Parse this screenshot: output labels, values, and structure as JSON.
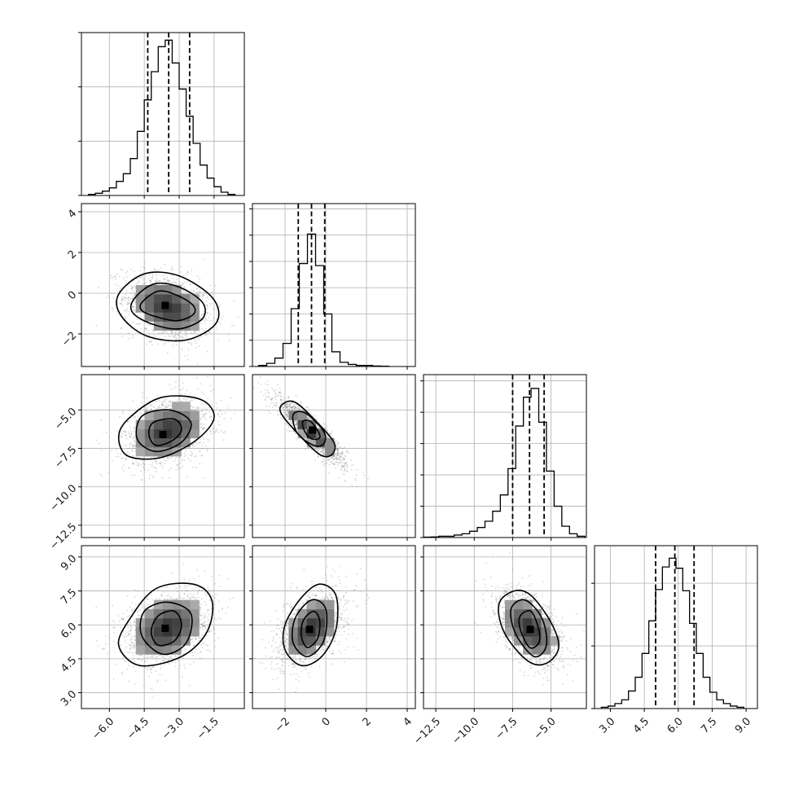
{
  "chart_data": {
    "type": "corner",
    "grid": true,
    "parameters": [
      {
        "range": [
          -7.2,
          -0.2
        ],
        "ticks": [
          -6.0,
          -4.5,
          -3.0,
          -1.5
        ],
        "tick_labels": [
          "−6.0",
          "−4.5",
          "−3.0",
          "−1.5"
        ],
        "quantiles": [
          -4.35,
          -3.45,
          -2.55
        ],
        "histogram": {
          "bin_edges": [
            -6.9,
            -6.6,
            -6.3,
            -6.0,
            -5.7,
            -5.4,
            -5.1,
            -4.8,
            -4.5,
            -4.2,
            -3.9,
            -3.6,
            -3.3,
            -3.0,
            -2.7,
            -2.4,
            -2.1,
            -1.8,
            -1.5,
            -1.2,
            -0.9,
            -0.6
          ],
          "counts": [
            1,
            2,
            4,
            7,
            13,
            20,
            34,
            59,
            88,
            114,
            137,
            143,
            122,
            98,
            73,
            48,
            28,
            16,
            8,
            3,
            1
          ],
          "ymax": 150,
          "yticks": [
            0,
            50,
            100,
            150
          ]
        }
      },
      {
        "range": [
          -3.6,
          4.4
        ],
        "ticks": [
          -2,
          0,
          2,
          4
        ],
        "tick_labels": [
          "−2",
          "0",
          "2",
          "4"
        ],
        "quantiles": [
          -1.35,
          -0.7,
          -0.05
        ],
        "histogram": {
          "bin_edges": [
            -3.3,
            -2.9,
            -2.5,
            -2.1,
            -1.7,
            -1.3,
            -0.9,
            -0.5,
            -0.1,
            0.3,
            0.7,
            1.1,
            1.5,
            1.9,
            2.3,
            2.7,
            3.1
          ],
          "counts": [
            1,
            3,
            8,
            22,
            55,
            98,
            126,
            96,
            50,
            14,
            4,
            2,
            1,
            1,
            0.5,
            0.3
          ],
          "ymax": 155,
          "yticks": [
            0,
            25,
            50,
            75,
            100,
            125,
            150
          ]
        }
      },
      {
        "range": [
          -13.3,
          -2.7
        ],
        "ticks": [
          -12.5,
          -10.0,
          -7.5,
          -5.0
        ],
        "tick_labels": [
          "−12.5",
          "−10.0",
          "−7.5",
          "−5.0"
        ],
        "quantiles": [
          -7.5,
          -6.4,
          -5.45
        ],
        "histogram": {
          "bin_edges": [
            -13.3,
            -12.8,
            -12.3,
            -11.8,
            -11.3,
            -10.8,
            -10.3,
            -9.8,
            -9.3,
            -8.8,
            -8.3,
            -7.8,
            -7.3,
            -6.8,
            -6.3,
            -5.8,
            -5.3,
            -4.8,
            -4.3,
            -3.8,
            -3.3,
            -2.8
          ],
          "counts": [
            0.3,
            0.5,
            1,
            1,
            2,
            3,
            5,
            8,
            13,
            21,
            34,
            55,
            89,
            112,
            119,
            92,
            53,
            25,
            9,
            3,
            1
          ],
          "ymax": 130,
          "yticks": [
            0,
            25,
            50,
            75,
            100,
            125
          ]
        }
      },
      {
        "range": [
          2.3,
          9.5
        ],
        "ticks": [
          3.0,
          4.5,
          6.0,
          7.5,
          9.0
        ],
        "tick_labels": [
          "3.0",
          "4.5",
          "6.0",
          "7.5",
          "9.0"
        ],
        "quantiles": [
          5.0,
          5.85,
          6.7
        ],
        "histogram": {
          "bin_edges": [
            2.6,
            2.9,
            3.2,
            3.5,
            3.8,
            4.1,
            4.4,
            4.7,
            5.0,
            5.3,
            5.6,
            5.9,
            6.2,
            6.5,
            6.8,
            7.1,
            7.4,
            7.7,
            8.0,
            8.3,
            8.6,
            8.9
          ],
          "counts": [
            1,
            2,
            4,
            7,
            14,
            25,
            44,
            70,
            95,
            113,
            120,
            112,
            94,
            68,
            44,
            25,
            13,
            7,
            4,
            2,
            1
          ],
          "ymax": 130,
          "yticks": [
            0,
            50,
            100
          ]
        }
      }
    ],
    "pairs": [
      {
        "row": 1,
        "col": 0,
        "mean": [
          -3.5,
          -0.7
        ],
        "sd": [
          0.95,
          0.85
        ],
        "rho": -0.3,
        "peak": [
          -3.6,
          -0.6
        ],
        "contours": [
          [
            [
              -4.6,
              -0.45
            ],
            [
              -3.9,
              0.1
            ],
            [
              -3.1,
              -0.1
            ],
            [
              -2.4,
              -0.6
            ],
            [
              -2.4,
              -1.05
            ],
            [
              -3.1,
              -1.35
            ],
            [
              -4.0,
              -1.15
            ],
            [
              -4.6,
              -0.85
            ]
          ],
          [
            [
              -4.95,
              -0.3
            ],
            [
              -4.1,
              0.45
            ],
            [
              -3.0,
              0.3
            ],
            [
              -2.0,
              -0.45
            ],
            [
              -2.0,
              -1.25
            ],
            [
              -3.0,
              -1.75
            ],
            [
              -4.2,
              -1.5
            ],
            [
              -5.0,
              -0.95
            ]
          ],
          [
            [
              -5.6,
              -0.05
            ],
            [
              -4.5,
              0.95
            ],
            [
              -3.0,
              0.85
            ],
            [
              -1.55,
              -0.25
            ],
            [
              -1.4,
              -1.45
            ],
            [
              -2.7,
              -2.3
            ],
            [
              -4.4,
              -2.1
            ],
            [
              -5.5,
              -1.1
            ]
          ]
        ]
      },
      {
        "row": 2,
        "col": 0,
        "mean": [
          -3.5,
          -6.4
        ],
        "sd": [
          0.95,
          1.1
        ],
        "rho": 0.3,
        "peak": [
          -3.7,
          -6.6
        ],
        "contours": [
          [
            [
              -4.1,
              -5.8
            ],
            [
              -3.2,
              -5.6
            ],
            [
              -2.9,
              -6.3
            ],
            [
              -3.3,
              -7.0
            ],
            [
              -4.0,
              -7.3
            ],
            [
              -4.3,
              -6.6
            ]
          ],
          [
            [
              -4.6,
              -5.4
            ],
            [
              -3.4,
              -5.0
            ],
            [
              -2.5,
              -5.8
            ],
            [
              -2.9,
              -7.1
            ],
            [
              -4.0,
              -7.7
            ],
            [
              -4.8,
              -6.9
            ]
          ],
          [
            [
              -5.2,
              -5.6
            ],
            [
              -3.8,
              -4.2
            ],
            [
              -2.1,
              -4.3
            ],
            [
              -1.5,
              -5.5
            ],
            [
              -2.3,
              -7.0
            ],
            [
              -3.8,
              -8.1
            ],
            [
              -5.2,
              -8.0
            ],
            [
              -5.6,
              -6.8
            ]
          ]
        ]
      },
      {
        "row": 2,
        "col": 1,
        "mean": [
          -0.7,
          -6.4
        ],
        "sd": [
          0.85,
          1.1
        ],
        "rho": -0.9,
        "peak": [
          -0.65,
          -6.3
        ],
        "contours": [
          [
            [
              -1.1,
              -5.7
            ],
            [
              -0.7,
              -5.8
            ],
            [
              -0.3,
              -6.6
            ],
            [
              -0.4,
              -6.9
            ],
            [
              -0.8,
              -6.8
            ],
            [
              -1.1,
              -6.2
            ]
          ],
          [
            [
              -1.6,
              -5.3
            ],
            [
              -1.0,
              -5.2
            ],
            [
              -0.1,
              -6.4
            ],
            [
              -0.1,
              -7.2
            ],
            [
              -0.6,
              -7.3
            ],
            [
              -1.4,
              -6.5
            ]
          ],
          [
            [
              -2.1,
              -4.6
            ],
            [
              -1.5,
              -4.5
            ],
            [
              -0.5,
              -5.7
            ],
            [
              0.4,
              -7.1
            ],
            [
              0.3,
              -7.9
            ],
            [
              -0.3,
              -7.9
            ],
            [
              -1.4,
              -6.5
            ],
            [
              -2.2,
              -5.2
            ]
          ]
        ]
      },
      {
        "row": 3,
        "col": 0,
        "mean": [
          -3.5,
          5.85
        ],
        "sd": [
          0.95,
          0.85
        ],
        "rho": 0.3,
        "peak": [
          -3.6,
          5.85
        ],
        "contours": [
          [
            [
              -3.9,
              6.4
            ],
            [
              -3.2,
              6.6
            ],
            [
              -2.9,
              6.0
            ],
            [
              -3.2,
              5.3
            ],
            [
              -3.9,
              5.1
            ],
            [
              -4.2,
              5.7
            ]
          ],
          [
            [
              -4.5,
              6.6
            ],
            [
              -3.5,
              7.0
            ],
            [
              -2.5,
              6.5
            ],
            [
              -2.7,
              5.2
            ],
            [
              -3.7,
              4.7
            ],
            [
              -4.6,
              5.5
            ]
          ],
          [
            [
              -5.1,
              6.3
            ],
            [
              -4.0,
              7.6
            ],
            [
              -2.4,
              7.8
            ],
            [
              -1.6,
              7.1
            ],
            [
              -1.8,
              5.7
            ],
            [
              -2.9,
              4.6
            ],
            [
              -4.7,
              4.2
            ],
            [
              -5.6,
              5.1
            ]
          ]
        ]
      },
      {
        "row": 3,
        "col": 1,
        "mean": [
          -0.7,
          5.85
        ],
        "sd": [
          0.85,
          0.85
        ],
        "rho": 0.5,
        "peak": [
          -0.8,
          5.8
        ],
        "contours": [
          [
            [
              -1.1,
              6.2
            ],
            [
              -0.6,
              6.6
            ],
            [
              -0.3,
              6.2
            ],
            [
              -0.4,
              5.4
            ],
            [
              -0.9,
              5.0
            ],
            [
              -1.2,
              5.5
            ]
          ],
          [
            [
              -1.5,
              6.3
            ],
            [
              -0.7,
              7.1
            ],
            [
              0.0,
              6.7
            ],
            [
              -0.1,
              5.3
            ],
            [
              -0.9,
              4.6
            ],
            [
              -1.6,
              5.2
            ]
          ],
          [
            [
              -2.0,
              6.0
            ],
            [
              -1.2,
              7.2
            ],
            [
              -0.3,
              7.8
            ],
            [
              0.5,
              7.3
            ],
            [
              0.5,
              5.8
            ],
            [
              -0.2,
              4.6
            ],
            [
              -1.2,
              4.2
            ],
            [
              -2.0,
              4.9
            ]
          ]
        ]
      },
      {
        "row": 3,
        "col": 2,
        "mean": [
          -6.4,
          5.85
        ],
        "sd": [
          1.1,
          0.85
        ],
        "rho": -0.5,
        "peak": [
          -6.35,
          5.8
        ],
        "contours": [
          [
            [
              -7.0,
              6.4
            ],
            [
              -6.3,
              6.6
            ],
            [
              -5.8,
              5.8
            ],
            [
              -5.8,
              5.2
            ],
            [
              -6.4,
              5.0
            ],
            [
              -7.0,
              5.8
            ]
          ],
          [
            [
              -7.6,
              6.7
            ],
            [
              -6.7,
              7.1
            ],
            [
              -5.6,
              6.3
            ],
            [
              -5.3,
              5.1
            ],
            [
              -6.1,
              4.6
            ],
            [
              -7.3,
              5.6
            ]
          ],
          [
            [
              -8.4,
              6.9
            ],
            [
              -7.4,
              7.5
            ],
            [
              -6.3,
              7.3
            ],
            [
              -5.0,
              6.1
            ],
            [
              -4.5,
              5.0
            ],
            [
              -5.3,
              4.3
            ],
            [
              -6.5,
              4.4
            ],
            [
              -8.0,
              5.6
            ]
          ]
        ]
      }
    ]
  }
}
